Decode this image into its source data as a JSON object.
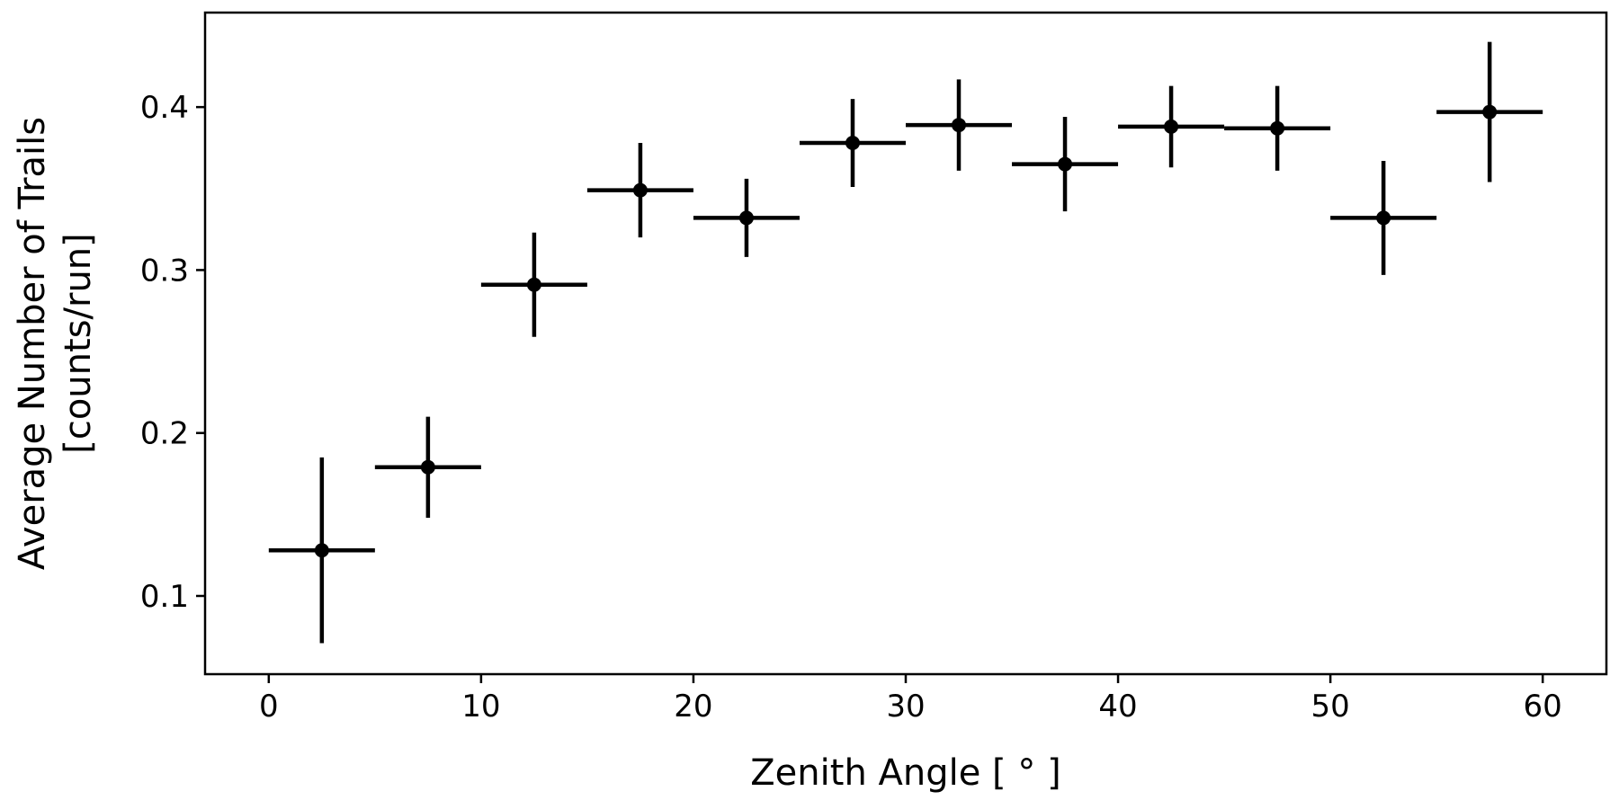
{
  "chart_data": {
    "type": "scatter",
    "title": "",
    "xlabel": "Zenith Angle [ ° ]",
    "ylabel_line1": "Average Number of Trails",
    "ylabel_line2": "[counts/run]",
    "xlim": [
      -3,
      63
    ],
    "ylim": [
      0.052,
      0.458
    ],
    "xticks": [
      0,
      10,
      20,
      30,
      40,
      50,
      60
    ],
    "xtick_labels": [
      "0",
      "10",
      "20",
      "30",
      "40",
      "50",
      "60"
    ],
    "yticks": [
      0.1,
      0.2,
      0.3,
      0.4
    ],
    "ytick_labels": [
      "0.1",
      "0.2",
      "0.3",
      "0.4"
    ],
    "grid": false,
    "color": "#000000",
    "points": [
      {
        "x": 2.5,
        "y": 0.128,
        "xerr": 2.5,
        "yerr": 0.057
      },
      {
        "x": 7.5,
        "y": 0.179,
        "xerr": 2.5,
        "yerr": 0.031
      },
      {
        "x": 12.5,
        "y": 0.291,
        "xerr": 2.5,
        "yerr": 0.032
      },
      {
        "x": 17.5,
        "y": 0.349,
        "xerr": 2.5,
        "yerr": 0.029
      },
      {
        "x": 22.5,
        "y": 0.332,
        "xerr": 2.5,
        "yerr": 0.024
      },
      {
        "x": 27.5,
        "y": 0.378,
        "xerr": 2.5,
        "yerr": 0.027
      },
      {
        "x": 32.5,
        "y": 0.389,
        "xerr": 2.5,
        "yerr": 0.028
      },
      {
        "x": 37.5,
        "y": 0.365,
        "xerr": 2.5,
        "yerr": 0.029
      },
      {
        "x": 42.5,
        "y": 0.388,
        "xerr": 2.5,
        "yerr": 0.025
      },
      {
        "x": 47.5,
        "y": 0.387,
        "xerr": 2.5,
        "yerr": 0.026
      },
      {
        "x": 52.5,
        "y": 0.332,
        "xerr": 2.5,
        "yerr": 0.035
      },
      {
        "x": 57.5,
        "y": 0.397,
        "xerr": 2.5,
        "yerr": 0.043
      }
    ]
  }
}
